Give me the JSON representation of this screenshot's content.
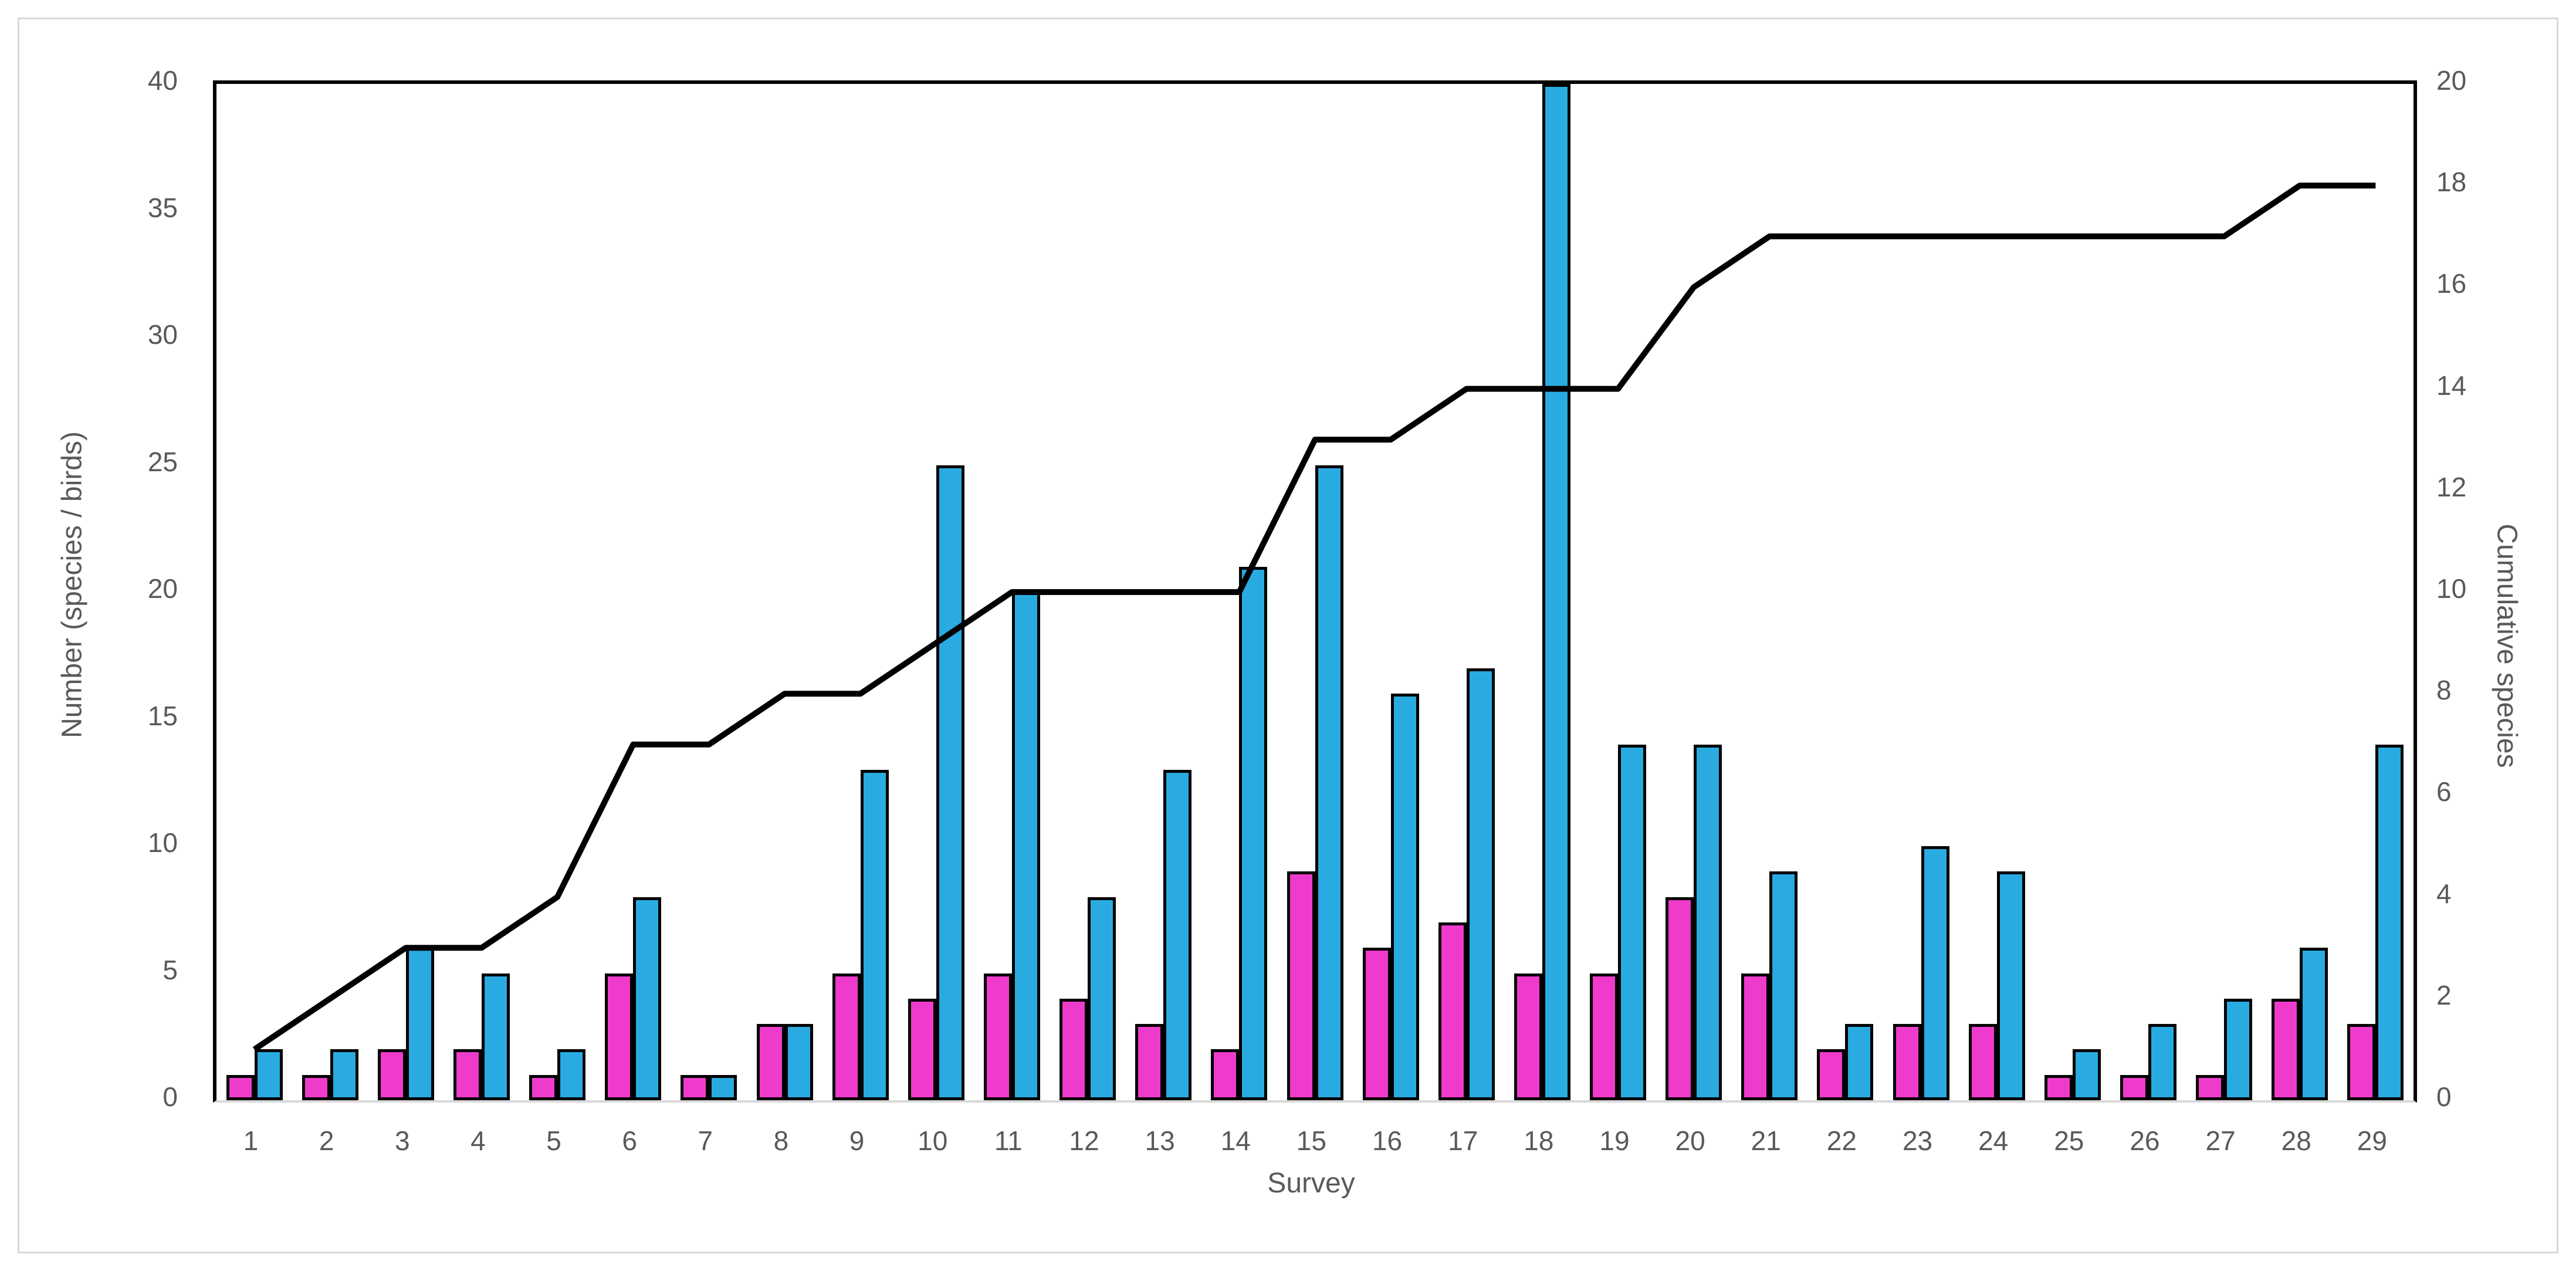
{
  "chart_data": {
    "type": "bar",
    "subtype": "combo-clustered-bars-with-line",
    "title": "",
    "xlabel": "Survey",
    "ylabel_left": "Number (species / birds)",
    "ylabel_right": "Cumulative species",
    "categories": [
      1,
      2,
      3,
      4,
      5,
      6,
      7,
      8,
      9,
      10,
      11,
      12,
      13,
      14,
      15,
      16,
      17,
      18,
      19,
      20,
      21,
      22,
      23,
      24,
      25,
      26,
      27,
      28,
      29
    ],
    "series": [
      {
        "name": "species",
        "axis": "left",
        "type": "bar",
        "color": "#ef3bcb",
        "values": [
          1,
          1,
          2,
          2,
          1,
          5,
          1,
          3,
          5,
          4,
          5,
          4,
          3,
          2,
          9,
          6,
          7,
          5,
          5,
          8,
          5,
          2,
          3,
          3,
          1,
          1,
          1,
          4,
          3
        ]
      },
      {
        "name": "birds",
        "axis": "left",
        "type": "bar",
        "color": "#29abe2",
        "values": [
          2,
          2,
          6,
          5,
          2,
          8,
          1,
          3,
          13,
          25,
          20,
          8,
          13,
          21,
          25,
          16,
          17,
          40,
          14,
          14,
          9,
          3,
          10,
          9,
          2,
          3,
          4,
          6,
          14
        ],
        "note": "bar at survey 18 is clipped at the axis maximum of 40"
      },
      {
        "name": "cumulative species",
        "axis": "right",
        "type": "line",
        "color": "#000000",
        "values": [
          1,
          2,
          3,
          3,
          4,
          7,
          7,
          8,
          8,
          9,
          10,
          10,
          10,
          10,
          13,
          13,
          14,
          14,
          14,
          16,
          17,
          17,
          17,
          17,
          17,
          17,
          17,
          18,
          18
        ]
      }
    ],
    "axes": {
      "left": {
        "min": 0,
        "max": 40,
        "step": 5,
        "ticks": [
          "0",
          "5",
          "10",
          "15",
          "20",
          "25",
          "30",
          "35",
          "40"
        ]
      },
      "right": {
        "min": 0,
        "max": 20,
        "step": 2,
        "ticks": [
          "0",
          "2",
          "4",
          "6",
          "8",
          "10",
          "12",
          "14",
          "16",
          "18",
          "20"
        ]
      },
      "x": {
        "ticks": [
          "1",
          "2",
          "3",
          "4",
          "5",
          "6",
          "7",
          "8",
          "9",
          "10",
          "11",
          "12",
          "13",
          "14",
          "15",
          "16",
          "17",
          "18",
          "19",
          "20",
          "21",
          "22",
          "23",
          "24",
          "25",
          "26",
          "27",
          "28",
          "29"
        ]
      }
    },
    "grid": false,
    "legend": "none",
    "text_color": "#595959",
    "bar_border_color": "#000000",
    "plot_border_color": "#000000",
    "frame_border_color": "#d9d9d9"
  },
  "titles": {
    "x_axis": "Survey",
    "y_axis_left": "Number (species / birds)",
    "y_axis_right": "Cumulative species"
  }
}
